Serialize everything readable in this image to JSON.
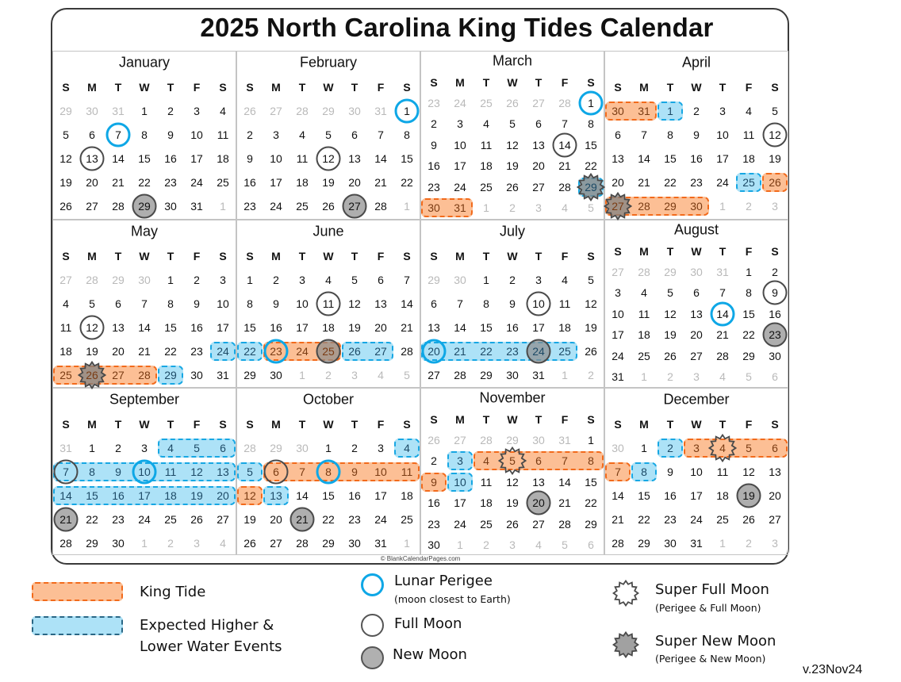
{
  "title": "2025 North Carolina King Tides Calendar",
  "year": 2025,
  "day_headers": [
    "S",
    "M",
    "T",
    "W",
    "T",
    "F",
    "S"
  ],
  "colors": {
    "king_fill": "#fcbf95",
    "king_border": "#f26a1b",
    "expected_fill": "#ade2f7",
    "expected_border": "#17a7e3",
    "perigee": "#0ea7e6",
    "full_moon": "#4a4a4a",
    "new_moon": "#a6a6a6"
  },
  "months": [
    {
      "name": "January",
      "weeks": [
        [
          29,
          30,
          31,
          1,
          2,
          3,
          4
        ],
        [
          5,
          6,
          7,
          8,
          9,
          10,
          11
        ],
        [
          12,
          13,
          14,
          15,
          16,
          17,
          18
        ],
        [
          19,
          20,
          21,
          22,
          23,
          24,
          25
        ],
        [
          26,
          27,
          28,
          29,
          30,
          31,
          1
        ]
      ],
      "markers": [
        {
          "type": "perigee",
          "day": 7
        },
        {
          "type": "full",
          "day": 13
        },
        {
          "type": "new",
          "day": 29
        }
      ],
      "highlights": []
    },
    {
      "name": "February",
      "weeks": [
        [
          26,
          27,
          28,
          29,
          30,
          31,
          1
        ],
        [
          2,
          3,
          4,
          5,
          6,
          7,
          8
        ],
        [
          9,
          10,
          11,
          12,
          13,
          14,
          15
        ],
        [
          16,
          17,
          18,
          19,
          20,
          21,
          22
        ],
        [
          23,
          24,
          25,
          26,
          27,
          28,
          1
        ]
      ],
      "markers": [
        {
          "type": "perigee",
          "day": 1
        },
        {
          "type": "full",
          "day": 12
        },
        {
          "type": "new",
          "day": 27
        }
      ],
      "highlights": []
    },
    {
      "name": "March",
      "weeks": [
        [
          23,
          24,
          25,
          26,
          27,
          28,
          1
        ],
        [
          2,
          3,
          4,
          5,
          6,
          7,
          8
        ],
        [
          9,
          10,
          11,
          12,
          13,
          14,
          15
        ],
        [
          16,
          17,
          18,
          19,
          20,
          21,
          22
        ],
        [
          23,
          24,
          25,
          26,
          27,
          28,
          29
        ],
        [
          30,
          31,
          1,
          2,
          3,
          4,
          5
        ]
      ],
      "markers": [
        {
          "type": "perigee",
          "day": 1
        },
        {
          "type": "full",
          "day": 14
        },
        {
          "type": "super_new",
          "day": 29
        }
      ],
      "highlights": [
        {
          "type": "exp",
          "from": "2025-03-29",
          "to": "2025-03-29"
        },
        {
          "type": "king",
          "from": "2025-03-30",
          "to": "2025-03-31"
        }
      ]
    },
    {
      "name": "April",
      "weeks": [
        [
          30,
          31,
          1,
          2,
          3,
          4,
          5
        ],
        [
          6,
          7,
          8,
          9,
          10,
          11,
          12
        ],
        [
          13,
          14,
          15,
          16,
          17,
          18,
          19
        ],
        [
          20,
          21,
          22,
          23,
          24,
          25,
          26
        ],
        [
          27,
          28,
          29,
          30,
          1,
          2,
          3
        ]
      ],
      "markers": [
        {
          "type": "full",
          "day": 12
        },
        {
          "type": "super_new",
          "day": 27
        }
      ],
      "highlights": [
        {
          "type": "king",
          "from": "2025-03-30",
          "to": "2025-03-31"
        },
        {
          "type": "exp",
          "from": "2025-04-01",
          "to": "2025-04-01"
        },
        {
          "type": "exp",
          "from": "2025-04-25",
          "to": "2025-04-25"
        },
        {
          "type": "king",
          "from": "2025-04-26",
          "to": "2025-04-26"
        },
        {
          "type": "king",
          "from": "2025-04-27",
          "to": "2025-04-30"
        }
      ]
    },
    {
      "name": "May",
      "weeks": [
        [
          27,
          28,
          29,
          30,
          1,
          2,
          3
        ],
        [
          4,
          5,
          6,
          7,
          8,
          9,
          10
        ],
        [
          11,
          12,
          13,
          14,
          15,
          16,
          17
        ],
        [
          18,
          19,
          20,
          21,
          22,
          23,
          24
        ],
        [
          25,
          26,
          27,
          28,
          29,
          30,
          31
        ]
      ],
      "markers": [
        {
          "type": "full",
          "day": 12
        },
        {
          "type": "super_new",
          "day": 26
        }
      ],
      "highlights": [
        {
          "type": "exp",
          "from": "2025-05-24",
          "to": "2025-05-24"
        },
        {
          "type": "king",
          "from": "2025-05-25",
          "to": "2025-05-28"
        },
        {
          "type": "exp",
          "from": "2025-05-29",
          "to": "2025-05-29"
        }
      ]
    },
    {
      "name": "June",
      "weeks": [
        [
          1,
          2,
          3,
          4,
          5,
          6,
          7
        ],
        [
          8,
          9,
          10,
          11,
          12,
          13,
          14
        ],
        [
          15,
          16,
          17,
          18,
          19,
          20,
          21
        ],
        [
          22,
          23,
          24,
          25,
          26,
          27,
          28
        ],
        [
          29,
          30,
          1,
          2,
          3,
          4,
          5
        ]
      ],
      "markers": [
        {
          "type": "full",
          "day": 11
        },
        {
          "type": "perigee",
          "day": 23
        },
        {
          "type": "new",
          "day": 25
        }
      ],
      "highlights": [
        {
          "type": "exp",
          "from": "2025-06-22",
          "to": "2025-06-22"
        },
        {
          "type": "king",
          "from": "2025-06-23",
          "to": "2025-06-25"
        },
        {
          "type": "exp",
          "from": "2025-06-26",
          "to": "2025-06-27"
        }
      ]
    },
    {
      "name": "July",
      "weeks": [
        [
          29,
          30,
          1,
          2,
          3,
          4,
          5
        ],
        [
          6,
          7,
          8,
          9,
          10,
          11,
          12
        ],
        [
          13,
          14,
          15,
          16,
          17,
          18,
          19
        ],
        [
          20,
          21,
          22,
          23,
          24,
          25,
          26
        ],
        [
          27,
          28,
          29,
          30,
          31,
          1,
          2
        ]
      ],
      "markers": [
        {
          "type": "full",
          "day": 10
        },
        {
          "type": "perigee",
          "day": 20
        },
        {
          "type": "new",
          "day": 24
        }
      ],
      "highlights": [
        {
          "type": "exp",
          "from": "2025-07-20",
          "to": "2025-07-25"
        }
      ]
    },
    {
      "name": "August",
      "weeks": [
        [
          27,
          28,
          29,
          30,
          31,
          1,
          2
        ],
        [
          3,
          4,
          5,
          6,
          7,
          8,
          9
        ],
        [
          10,
          11,
          12,
          13,
          14,
          15,
          16
        ],
        [
          17,
          18,
          19,
          20,
          21,
          22,
          23
        ],
        [
          24,
          25,
          26,
          27,
          28,
          29,
          30
        ],
        [
          31,
          1,
          2,
          3,
          4,
          5,
          6
        ]
      ],
      "markers": [
        {
          "type": "full",
          "day": 9
        },
        {
          "type": "perigee",
          "day": 14
        },
        {
          "type": "new",
          "day": 23
        }
      ],
      "highlights": []
    },
    {
      "name": "September",
      "weeks": [
        [
          31,
          1,
          2,
          3,
          4,
          5,
          6
        ],
        [
          7,
          8,
          9,
          10,
          11,
          12,
          13
        ],
        [
          14,
          15,
          16,
          17,
          18,
          19,
          20
        ],
        [
          21,
          22,
          23,
          24,
          25,
          26,
          27
        ],
        [
          28,
          29,
          30,
          1,
          2,
          3,
          4
        ]
      ],
      "markers": [
        {
          "type": "full",
          "day": 7
        },
        {
          "type": "perigee",
          "day": 10
        },
        {
          "type": "new",
          "day": 21
        }
      ],
      "highlights": [
        {
          "type": "exp",
          "from": "2025-09-04",
          "to": "2025-09-06"
        },
        {
          "type": "exp",
          "from": "2025-09-07",
          "to": "2025-09-13"
        },
        {
          "type": "exp",
          "from": "2025-09-14",
          "to": "2025-09-20"
        }
      ]
    },
    {
      "name": "October",
      "weeks": [
        [
          28,
          29,
          30,
          1,
          2,
          3,
          4
        ],
        [
          5,
          6,
          7,
          8,
          9,
          10,
          11
        ],
        [
          12,
          13,
          14,
          15,
          16,
          17,
          18
        ],
        [
          19,
          20,
          21,
          22,
          23,
          24,
          25
        ],
        [
          26,
          27,
          28,
          29,
          30,
          31,
          1
        ]
      ],
      "markers": [
        {
          "type": "full",
          "day": 6
        },
        {
          "type": "perigee",
          "day": 8
        },
        {
          "type": "new",
          "day": 21
        }
      ],
      "highlights": [
        {
          "type": "exp",
          "from": "2025-10-04",
          "to": "2025-10-04"
        },
        {
          "type": "exp",
          "from": "2025-10-05",
          "to": "2025-10-05"
        },
        {
          "type": "king",
          "from": "2025-10-06",
          "to": "2025-10-11"
        },
        {
          "type": "king",
          "from": "2025-10-12",
          "to": "2025-10-12"
        },
        {
          "type": "exp",
          "from": "2025-10-13",
          "to": "2025-10-13"
        }
      ]
    },
    {
      "name": "November",
      "weeks": [
        [
          26,
          27,
          28,
          29,
          30,
          31,
          1
        ],
        [
          2,
          3,
          4,
          5,
          6,
          7,
          8
        ],
        [
          9,
          10,
          11,
          12,
          13,
          14,
          15
        ],
        [
          16,
          17,
          18,
          19,
          20,
          21,
          22
        ],
        [
          23,
          24,
          25,
          26,
          27,
          28,
          29
        ],
        [
          30,
          1,
          2,
          3,
          4,
          5,
          6
        ]
      ],
      "markers": [
        {
          "type": "super_full",
          "day": 5
        },
        {
          "type": "new",
          "day": 20
        }
      ],
      "highlights": [
        {
          "type": "exp",
          "from": "2025-11-03",
          "to": "2025-11-03"
        },
        {
          "type": "king",
          "from": "2025-11-04",
          "to": "2025-11-08"
        },
        {
          "type": "king",
          "from": "2025-11-09",
          "to": "2025-11-09"
        },
        {
          "type": "exp",
          "from": "2025-11-10",
          "to": "2025-11-10"
        }
      ]
    },
    {
      "name": "December",
      "weeks": [
        [
          30,
          1,
          2,
          3,
          4,
          5,
          6
        ],
        [
          7,
          8,
          9,
          10,
          11,
          12,
          13
        ],
        [
          14,
          15,
          16,
          17,
          18,
          19,
          20
        ],
        [
          21,
          22,
          23,
          24,
          25,
          26,
          27
        ],
        [
          28,
          29,
          30,
          31,
          1,
          2,
          3
        ]
      ],
      "markers": [
        {
          "type": "super_full",
          "day": 4
        },
        {
          "type": "new",
          "day": 19
        }
      ],
      "highlights": [
        {
          "type": "exp",
          "from": "2025-12-02",
          "to": "2025-12-02"
        },
        {
          "type": "king",
          "from": "2025-12-03",
          "to": "2025-12-06"
        },
        {
          "type": "king",
          "from": "2025-12-07",
          "to": "2025-12-07"
        },
        {
          "type": "exp",
          "from": "2025-12-08",
          "to": "2025-12-08"
        }
      ]
    }
  ],
  "copyright": "© BlankCalendarPages.com",
  "legend": {
    "king_tide": "King Tide",
    "expected_line1": "Expected Higher &",
    "expected_line2": "Lower Water Events",
    "perigee": "Lunar Perigee",
    "perigee_sub": "(moon closest to Earth)",
    "full_moon": "Full Moon",
    "new_moon": "New Moon",
    "super_full": "Super Full Moon",
    "super_full_sub": "(Perigee & Full Moon)",
    "super_new": "Super New Moon",
    "super_new_sub": "(Perigee & New Moon)"
  },
  "version": "v.23Nov24"
}
